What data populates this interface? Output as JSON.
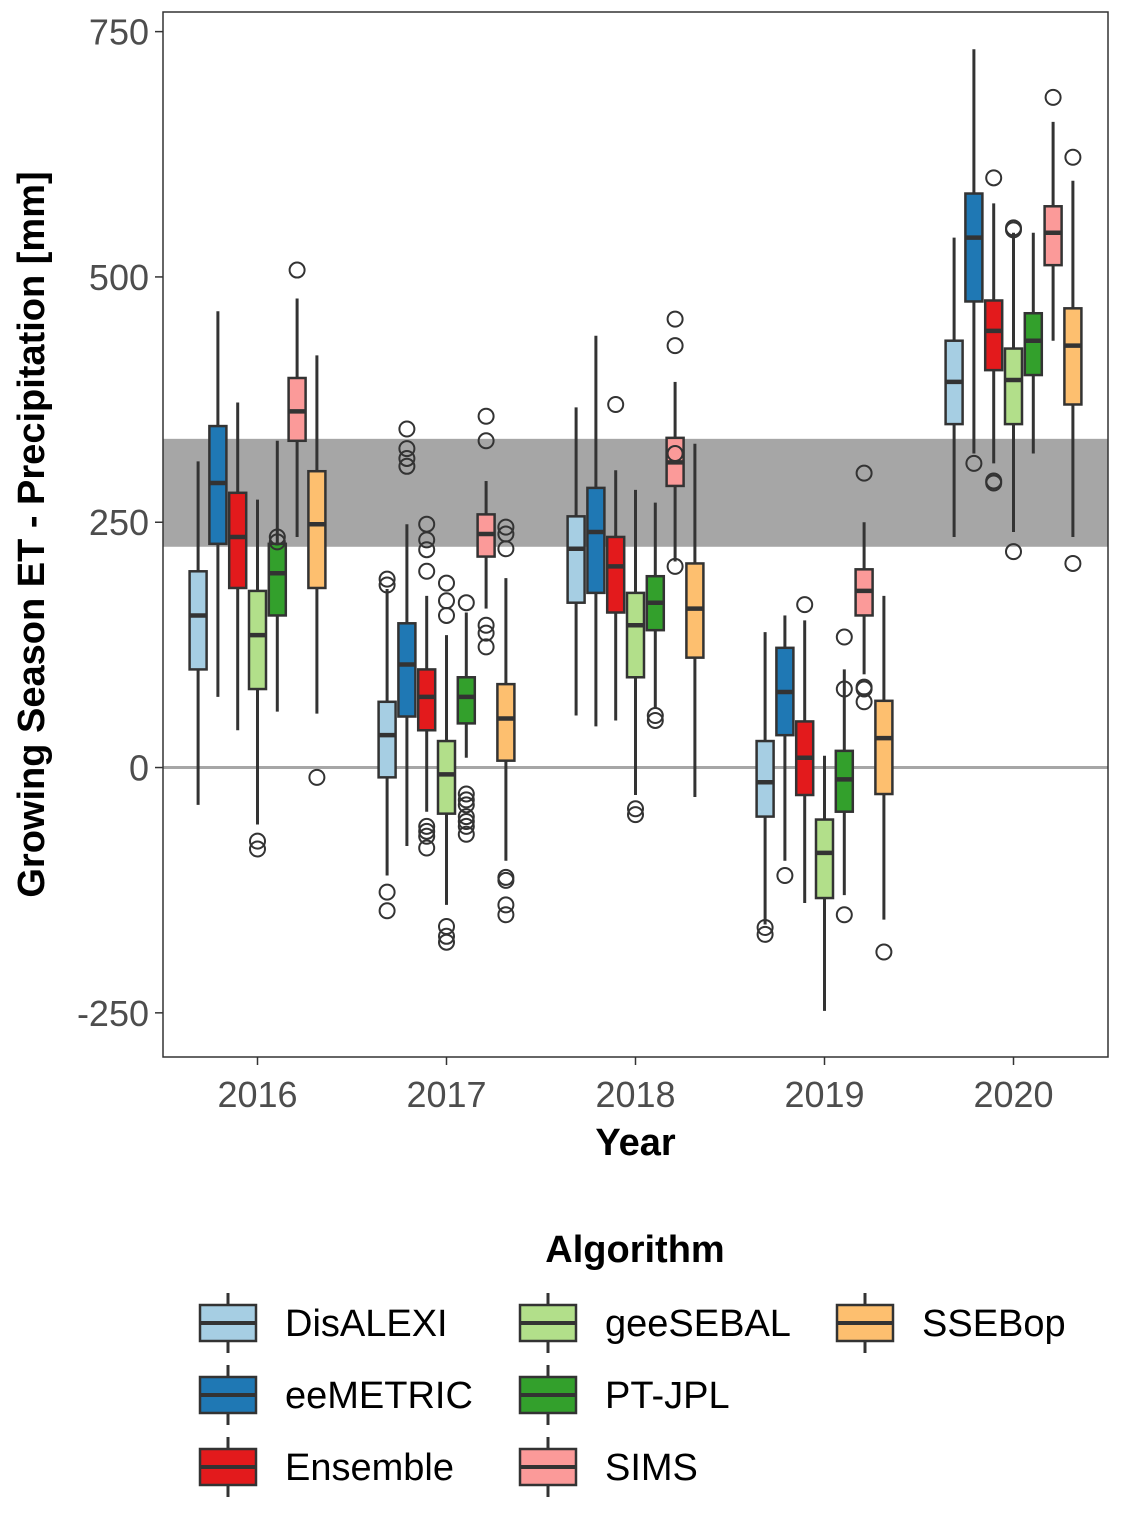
{
  "chart_data": {
    "type": "boxplot",
    "title": "",
    "xlabel": "Year",
    "ylabel": "Growing Season ET - Precipitation [mm]",
    "ylim": [
      -295,
      770
    ],
    "yticks": [
      -250,
      0,
      250,
      500,
      750
    ],
    "categories": [
      "2016",
      "2017",
      "2018",
      "2019",
      "2020"
    ],
    "reference_band": {
      "ymin": 225,
      "ymax": 335,
      "color": "#a6a6a6"
    },
    "reference_line": {
      "y": 0,
      "color": "#a6a6a6"
    },
    "legend": {
      "title": "Algorithm",
      "position": "bottom"
    },
    "series": [
      {
        "name": "DisALEXI",
        "color": "#a6cee3",
        "boxes": [
          {
            "whisker_low": -38,
            "q1": 100,
            "median": 155,
            "q3": 200,
            "whisker_high": 312,
            "outliers": []
          },
          {
            "whisker_low": -110,
            "q1": -10,
            "median": 33,
            "q3": 67,
            "whisker_high": 182,
            "outliers": [
              192,
              186,
              -127,
              -146
            ]
          },
          {
            "whisker_low": 53,
            "q1": 168,
            "median": 223,
            "q3": 256,
            "whisker_high": 367,
            "outliers": []
          },
          {
            "whisker_low": -160,
            "q1": -50,
            "median": -15,
            "q3": 27,
            "whisker_high": 138,
            "outliers": [
              -163,
              -170
            ]
          },
          {
            "whisker_low": 235,
            "q1": 350,
            "median": 393,
            "q3": 435,
            "whisker_high": 540,
            "outliers": []
          }
        ]
      },
      {
        "name": "eeMETRIC",
        "color": "#1f78b4",
        "boxes": [
          {
            "whisker_low": 72,
            "q1": 228,
            "median": 290,
            "q3": 348,
            "whisker_high": 465,
            "outliers": []
          },
          {
            "whisker_low": -80,
            "q1": 52,
            "median": 105,
            "q3": 147,
            "whisker_high": 248,
            "outliers": [
              345,
              325,
              315,
              307
            ]
          },
          {
            "whisker_low": 42,
            "q1": 178,
            "median": 240,
            "q3": 285,
            "whisker_high": 440,
            "outliers": []
          },
          {
            "whisker_low": -95,
            "q1": 33,
            "median": 77,
            "q3": 122,
            "whisker_high": 155,
            "outliers": [
              -110
            ]
          },
          {
            "whisker_low": 320,
            "q1": 475,
            "median": 540,
            "q3": 585,
            "whisker_high": 732,
            "outliers": [
              310
            ]
          }
        ]
      },
      {
        "name": "Ensemble",
        "color": "#e31a1c",
        "boxes": [
          {
            "whisker_low": 38,
            "q1": 183,
            "median": 235,
            "q3": 280,
            "whisker_high": 372,
            "outliers": []
          },
          {
            "whisker_low": -45,
            "q1": 38,
            "median": 72,
            "q3": 100,
            "whisker_high": 175,
            "outliers": [
              248,
              232,
              222,
              200,
              -60,
              -65,
              -70,
              -82
            ]
          },
          {
            "whisker_low": 48,
            "q1": 158,
            "median": 205,
            "q3": 235,
            "whisker_high": 303,
            "outliers": [
              370
            ]
          },
          {
            "whisker_low": -138,
            "q1": -28,
            "median": 10,
            "q3": 47,
            "whisker_high": 150,
            "outliers": [
              166
            ]
          },
          {
            "whisker_low": 310,
            "q1": 405,
            "median": 445,
            "q3": 476,
            "whisker_high": 575,
            "outliers": [
              601,
              292,
              290
            ]
          }
        ]
      },
      {
        "name": "geeSEBAL",
        "color": "#b2df8a",
        "boxes": [
          {
            "whisker_low": -58,
            "q1": 80,
            "median": 135,
            "q3": 180,
            "whisker_high": 273,
            "outliers": [
              -75,
              -83
            ]
          },
          {
            "whisker_low": -140,
            "q1": -47,
            "median": -7,
            "q3": 27,
            "whisker_high": 135,
            "outliers": [
              188,
              170,
              155,
              -162,
              -172,
              -178
            ]
          },
          {
            "whisker_low": -28,
            "q1": 92,
            "median": 145,
            "q3": 178,
            "whisker_high": 283,
            "outliers": [
              -42,
              -48
            ]
          },
          {
            "whisker_low": -248,
            "q1": -133,
            "median": -87,
            "q3": -53,
            "whisker_high": 12,
            "outliers": []
          },
          {
            "whisker_low": 240,
            "q1": 350,
            "median": 395,
            "q3": 427,
            "whisker_high": 545,
            "outliers": [
              550,
              548,
              220
            ]
          }
        ]
      },
      {
        "name": "PT-JPL",
        "color": "#33a02c",
        "boxes": [
          {
            "whisker_low": 57,
            "q1": 155,
            "median": 198,
            "q3": 228,
            "whisker_high": 333,
            "outliers": [
              235,
              230
            ]
          },
          {
            "whisker_low": 10,
            "q1": 45,
            "median": 72,
            "q3": 92,
            "whisker_high": 158,
            "outliers": [
              168,
              -27,
              -33,
              -38,
              -50,
              -55,
              -60,
              -68
            ]
          },
          {
            "whisker_low": 60,
            "q1": 140,
            "median": 168,
            "q3": 195,
            "whisker_high": 270,
            "outliers": [
              53,
              48
            ]
          },
          {
            "whisker_low": -130,
            "q1": -45,
            "median": -12,
            "q3": 17,
            "whisker_high": 100,
            "outliers": [
              133,
              80,
              -150
            ]
          },
          {
            "whisker_low": 320,
            "q1": 400,
            "median": 435,
            "q3": 463,
            "whisker_high": 545,
            "outliers": []
          }
        ]
      },
      {
        "name": "SIMS",
        "color": "#fb9a99",
        "boxes": [
          {
            "whisker_low": 235,
            "q1": 333,
            "median": 363,
            "q3": 397,
            "whisker_high": 478,
            "outliers": [
              507
            ]
          },
          {
            "whisker_low": 162,
            "q1": 215,
            "median": 238,
            "q3": 258,
            "whisker_high": 292,
            "outliers": [
              358,
              333,
              145,
              137,
              123
            ]
          },
          {
            "whisker_low": 210,
            "q1": 287,
            "median": 311,
            "q3": 336,
            "whisker_high": 393,
            "outliers": [
              457,
              430,
              320,
              205
            ]
          },
          {
            "whisker_low": 95,
            "q1": 155,
            "median": 180,
            "q3": 202,
            "whisker_high": 250,
            "outliers": [
              300,
              82,
              80,
              67
            ]
          },
          {
            "whisker_low": 435,
            "q1": 512,
            "median": 545,
            "q3": 572,
            "whisker_high": 658,
            "outliers": [
              683
            ]
          }
        ]
      },
      {
        "name": "SSEBop",
        "color": "#fdbf6f",
        "boxes": [
          {
            "whisker_low": 55,
            "q1": 183,
            "median": 248,
            "q3": 302,
            "whisker_high": 420,
            "outliers": [
              -10
            ]
          },
          {
            "whisker_low": -95,
            "q1": 7,
            "median": 50,
            "q3": 85,
            "whisker_high": 193,
            "outliers": [
              245,
              238,
              223,
              -112,
              -115,
              -140,
              -150
            ]
          },
          {
            "whisker_low": -30,
            "q1": 112,
            "median": 162,
            "q3": 208,
            "whisker_high": 330,
            "outliers": []
          },
          {
            "whisker_low": -155,
            "q1": -27,
            "median": 30,
            "q3": 68,
            "whisker_high": 175,
            "outliers": [
              -188
            ]
          },
          {
            "whisker_low": 235,
            "q1": 370,
            "median": 430,
            "q3": 468,
            "whisker_high": 598,
            "outliers": [
              622,
              208
            ]
          }
        ]
      }
    ]
  }
}
